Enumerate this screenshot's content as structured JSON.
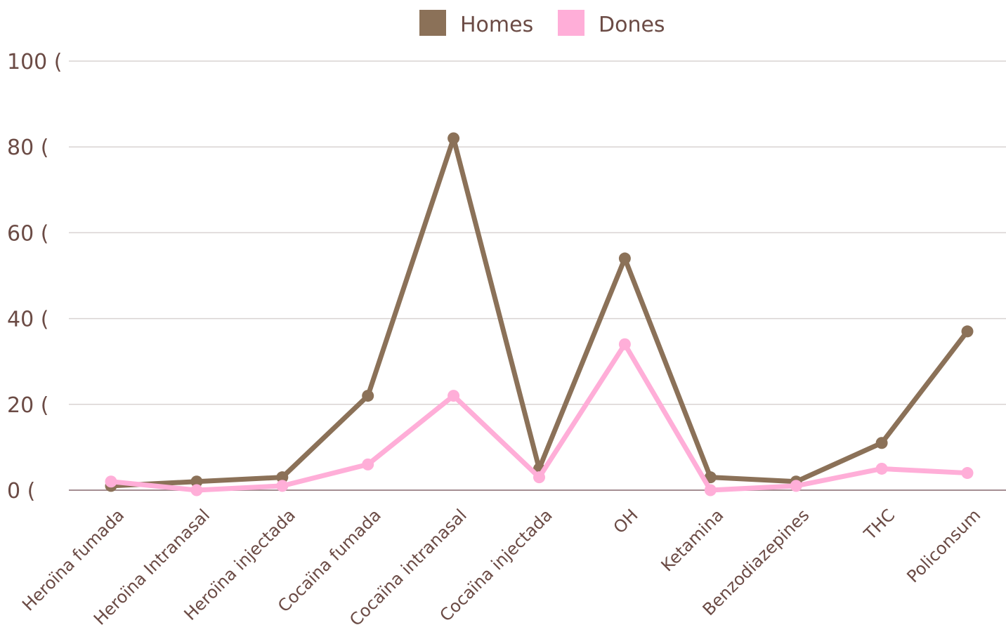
{
  "chart_data": {
    "type": "line",
    "categories": [
      "Heroïna fumada",
      "Heroïna Intranasal",
      "Heroïna injectada",
      "Cocaïna fumada",
      "Cocaïna intranasal",
      "Cocaïna injectada",
      "OH",
      "Ketamina",
      "Benzodiazepines",
      "THC",
      "Policonsum"
    ],
    "series": [
      {
        "name": "Homes",
        "color": "#8b7158",
        "values": [
          1,
          2,
          3,
          22,
          82,
          5,
          54,
          3,
          2,
          11,
          37
        ]
      },
      {
        "name": "Dones",
        "color": "#ffaed8",
        "values": [
          2,
          0,
          1,
          6,
          22,
          3,
          34,
          0,
          1,
          5,
          4
        ]
      }
    ],
    "ylim": [
      0,
      100
    ],
    "yticks": [
      0,
      20,
      40,
      60,
      80,
      100
    ],
    "ytick_labels": [
      "0 (",
      "20 (",
      "40 (",
      "60 (",
      "80 (",
      "100 ("
    ],
    "grid": true,
    "legend": "top-center",
    "text_color": "#6b4b45",
    "grid_color": "#d9d3d2",
    "axis_color": "#a58e92"
  }
}
